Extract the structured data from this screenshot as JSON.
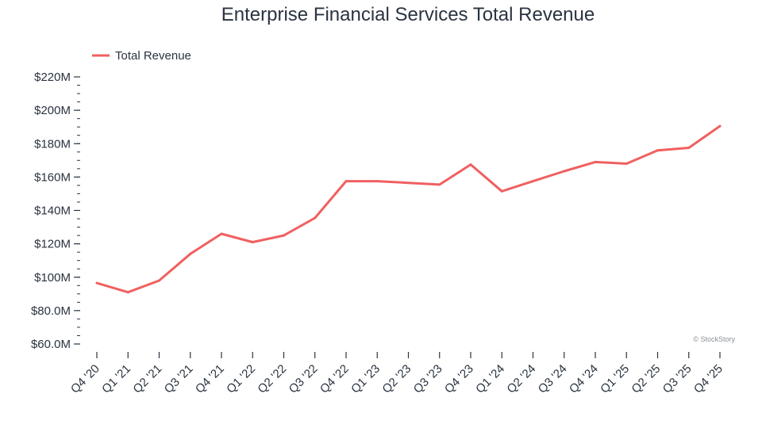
{
  "chart_data": {
    "type": "line",
    "title": "Enterprise Financial Services Total Revenue",
    "xlabel": "",
    "ylabel": "",
    "categories": [
      "Q4 '20",
      "Q1 '21",
      "Q2 '21",
      "Q3 '21",
      "Q4 '21",
      "Q1 '22",
      "Q2 '22",
      "Q3 '22",
      "Q4 '22",
      "Q1 '23",
      "Q2 '23",
      "Q3 '23",
      "Q4 '23",
      "Q1 '24",
      "Q2 '24",
      "Q3 '24",
      "Q4 '24",
      "Q1 '25",
      "Q2 '25",
      "Q3 '25",
      "Q4 '25"
    ],
    "series": [
      {
        "name": "Total Revenue",
        "color": "#f06060",
        "values": [
          96.5,
          91.0,
          98.0,
          114.0,
          126.0,
          121.0,
          125.0,
          135.5,
          157.5,
          157.5,
          156.5,
          155.5,
          167.5,
          151.5,
          157.5,
          163.5,
          169.0,
          168.0,
          176.0,
          177.5,
          190.5
        ]
      }
    ],
    "ylim": [
      60,
      220
    ],
    "y_ticks": [
      {
        "value": 60,
        "label": "$60.0M"
      },
      {
        "value": 80,
        "label": "$80.0M"
      },
      {
        "value": 100,
        "label": "$100M"
      },
      {
        "value": 120,
        "label": "$120M"
      },
      {
        "value": 140,
        "label": "$140M"
      },
      {
        "value": 160,
        "label": "$160M"
      },
      {
        "value": 180,
        "label": "$180M"
      },
      {
        "value": 200,
        "label": "$200M"
      },
      {
        "value": 220,
        "label": "$220M"
      }
    ],
    "y_minor_step": 5,
    "grid": false,
    "legend_position": "top-left",
    "watermark": "© StockStory"
  }
}
